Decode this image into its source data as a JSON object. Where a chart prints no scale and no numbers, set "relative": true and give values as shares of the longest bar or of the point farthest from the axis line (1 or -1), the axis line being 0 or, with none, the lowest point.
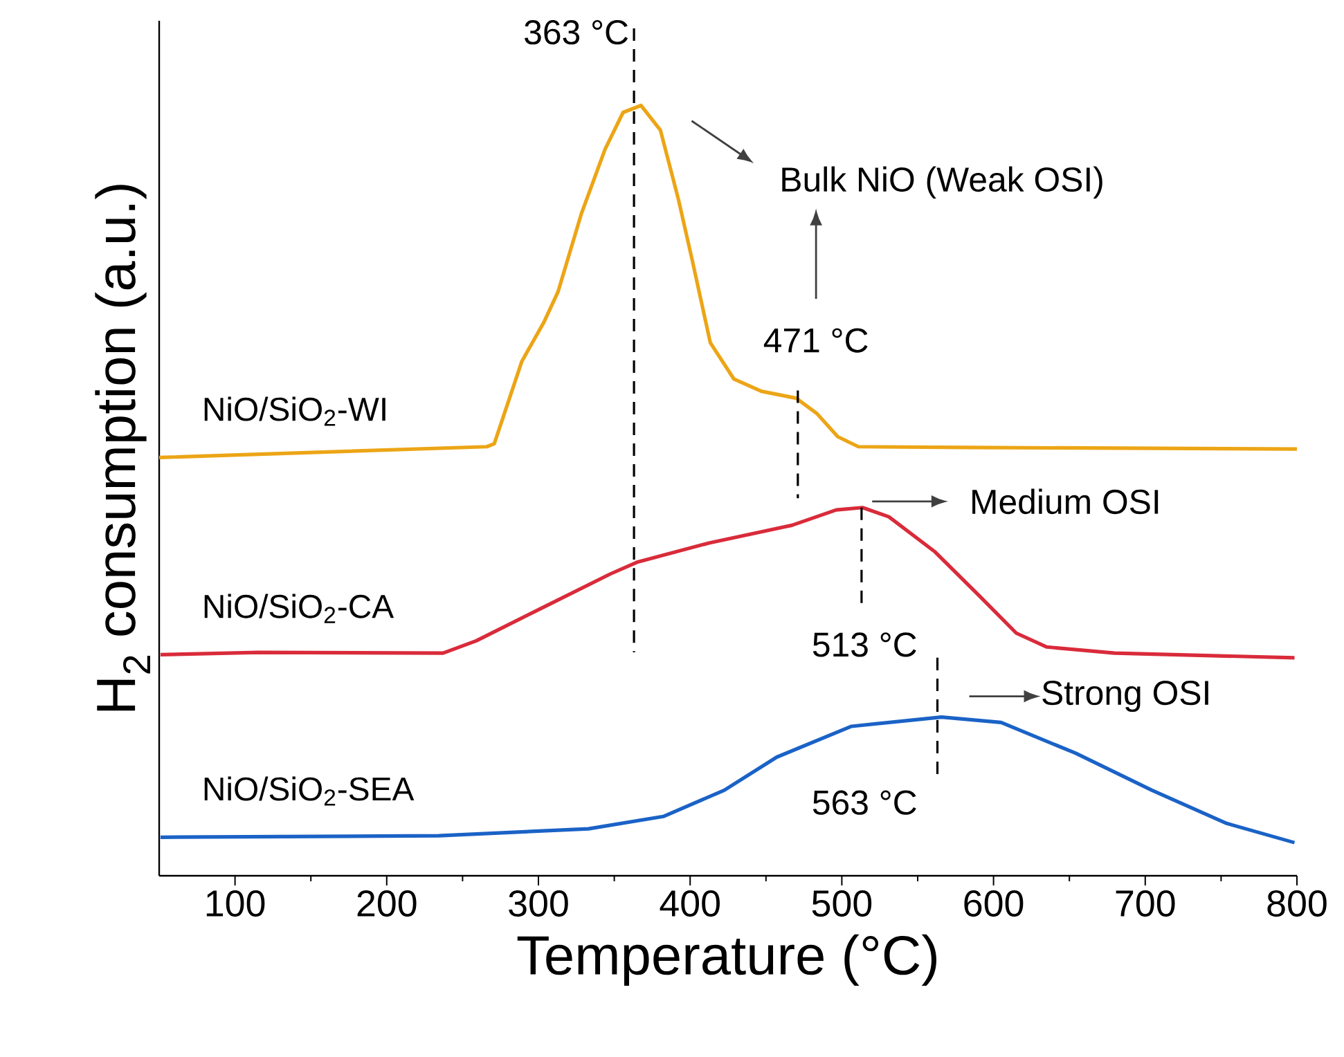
{
  "chart_data": {
    "type": "line",
    "relative": true,
    "xlabel": "Temperature (°C)",
    "ylabel": "H$_{2}$ consumption (a.u.)",
    "xlim": [
      50,
      800
    ],
    "xticks": [
      100,
      200,
      300,
      400,
      500,
      600,
      700,
      800
    ],
    "series": [
      {
        "name": "NiO/SiO$_{2}$-WI",
        "color": "#eca516",
        "x": [
          50,
          266,
          270.9,
          289.1,
          303.7,
          312.9,
          328.4,
          343.9,
          355.8,
          367.6,
          380.4,
          392.3,
          401.4,
          413.3,
          428.8,
          447,
          469.9,
          483.6,
          497.3,
          510.9,
          584,
          800
        ],
        "values": [
          0.543,
          0.557,
          0.561,
          0.668,
          0.719,
          0.758,
          0.86,
          0.943,
          0.991,
          1,
          0.968,
          0.878,
          0.799,
          0.692,
          0.645,
          0.629,
          0.62,
          0.6,
          0.57,
          0.557,
          0.556,
          0.554
        ]
      },
      {
        "name": "NiO/SiO$_{2}$-CA",
        "color": "#d92b3a",
        "x": [
          50.9,
          115.7,
          237.1,
          259,
          303.7,
          347.6,
          364.9,
          412.4,
          467.1,
          496.3,
          513.7,
          531,
          561.1,
          590.3,
          615,
          635.1,
          679.8,
          798.4
        ],
        "values": [
          0.287,
          0.29,
          0.289,
          0.305,
          0.349,
          0.392,
          0.407,
          0.432,
          0.455,
          0.475,
          0.478,
          0.466,
          0.421,
          0.364,
          0.315,
          0.297,
          0.289,
          0.283
        ]
      },
      {
        "name": "NiO/SiO$_{2}$-SEA",
        "color": "#1a62c6",
        "x": [
          50.9,
          234.4,
          333,
          382.3,
          422.5,
          457.1,
          506.4,
          565.7,
          605,
          654.2,
          704.4,
          753.7,
          798.4
        ],
        "values": [
          0.05,
          0.052,
          0.061,
          0.077,
          0.111,
          0.154,
          0.194,
          0.206,
          0.199,
          0.159,
          0.111,
          0.068,
          0.043
        ]
      }
    ],
    "ref_lines": [
      {
        "axis": "x",
        "value": 363,
        "label": "363 °C",
        "line_style": "dashed"
      },
      {
        "axis": "x",
        "value": 471,
        "label": "471 °C",
        "line_style": "dashed"
      },
      {
        "axis": "x",
        "value": 513,
        "label": "513 °C",
        "line_style": "dashed"
      },
      {
        "axis": "x",
        "value": 563,
        "label": "563 °C",
        "line_style": "dashed"
      }
    ],
    "annotations": [
      "Bulk NiO (Weak OSI)",
      "Medium OSI",
      "Strong OSI"
    ]
  }
}
